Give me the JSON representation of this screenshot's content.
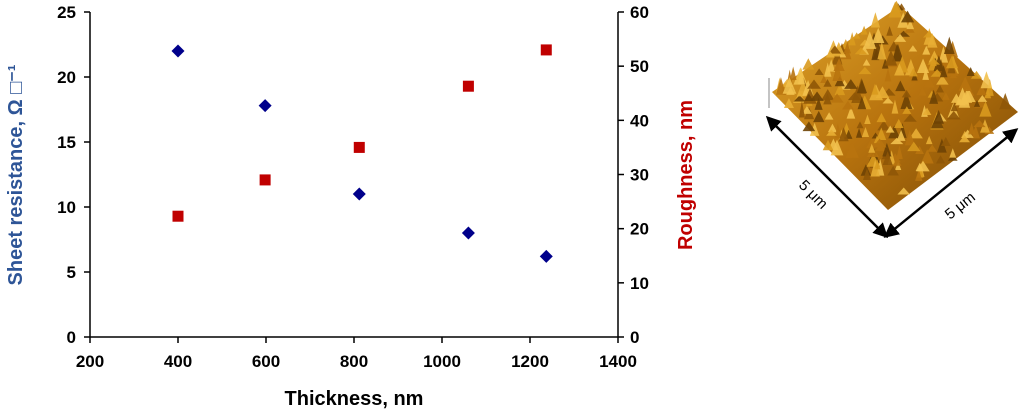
{
  "chart_data": {
    "type": "scatter",
    "title": "",
    "xlabel": "Thickness, nm",
    "y_left_label": "Sheet resistance, Ω □⁻¹",
    "y_right_label": "Roughness, nm",
    "xlim": [
      200,
      1400
    ],
    "x_ticks": [
      "200",
      "400",
      "600",
      "800",
      "1000",
      "1200",
      "1400"
    ],
    "y_left_lim": [
      0,
      25
    ],
    "y_left_ticks": [
      "0",
      "5",
      "10",
      "15",
      "20",
      "25"
    ],
    "y_right_lim": [
      0,
      60
    ],
    "y_right_ticks": [
      "0",
      "10",
      "20",
      "30",
      "40",
      "50",
      "60"
    ],
    "grid": false,
    "legend": "none",
    "series": [
      {
        "axis": "left",
        "marker": "diamond",
        "color": "#00008B",
        "x": [
          400,
          598,
          812,
          1060,
          1237
        ],
        "y": [
          22.0,
          17.8,
          11.0,
          8.0,
          6.2
        ]
      },
      {
        "axis": "right",
        "marker": "square",
        "color": "#C00000",
        "x": [
          400,
          598,
          812,
          1060,
          1237
        ],
        "y": [
          22.3,
          29.0,
          35.0,
          46.3,
          53.0
        ]
      }
    ]
  },
  "afm_inset": {
    "dim_label_left": "5 μm",
    "dim_label_right": "5 μm",
    "surface_color": "#B8860B"
  },
  "colors": {
    "left_axis_title": "#2E5597",
    "right_axis_title": "#C00000"
  }
}
